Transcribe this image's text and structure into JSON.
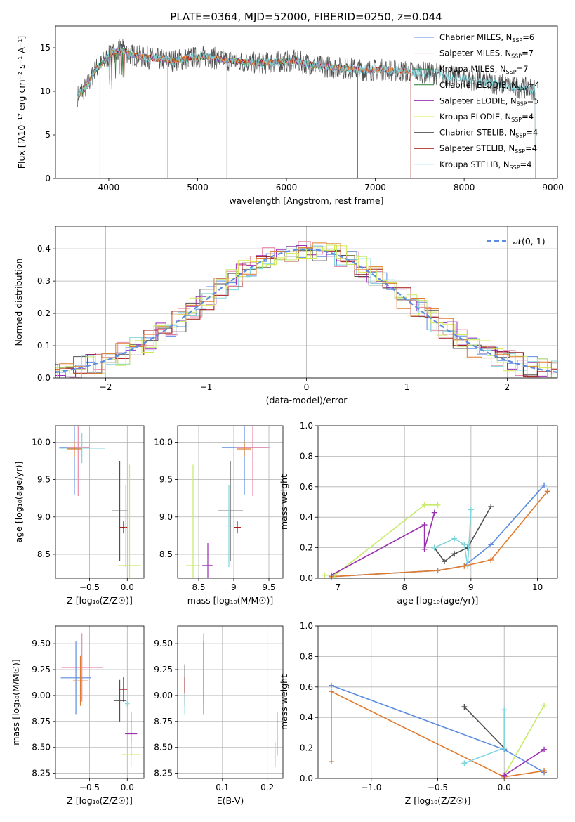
{
  "figure_title": "PLATE=0364, MJD=52000, FIBERID=0250, z=0.044",
  "colors": {
    "Chabrier MILES": "#5b8ce0",
    "Salpeter MILES": "#e98aa8",
    "Kroupa MILES": "#2e8b57",
    "Chabrier ELODIE": "#2e7d32",
    "Salpeter ELODIE": "#9a2fb0",
    "Kroupa ELODIE": "#d7e84a",
    "Chabrier STELIB": "#505050",
    "Salpeter STELIB": "#a01010",
    "Kroupa STELIB": "#7fd6dc",
    "orange": "#e07a2e",
    "lime": "#c7ea6a",
    "grid": "#b0b0b0"
  },
  "chart_data": [
    {
      "type": "line",
      "title": "PLATE=0364, MJD=52000, FIBERID=0250, z=0.044",
      "xlabel": "wavelength [Angstrom, rest frame]",
      "ylabel": "Flux [fλ10⁻¹⁷ erg cm⁻² s⁻¹ A⁻¹]",
      "xlim": [
        3400,
        9050
      ],
      "ylim": [
        0,
        17.5
      ],
      "xticks": [
        4000,
        5000,
        6000,
        7000,
        8000,
        9000
      ],
      "yticks": [
        0,
        5,
        10,
        15
      ],
      "grid": false,
      "legend_position": "top-right",
      "legend": [
        {
          "label": "Chabrier MILES, N",
          "sub": "SSP",
          "suffix": "=6"
        },
        {
          "label": "Salpeter MILES, N",
          "sub": "SSP",
          "suffix": "=7"
        },
        {
          "label": "Kroupa MILES, N",
          "sub": "SSP",
          "suffix": "=7"
        },
        {
          "label": "Chabrier ELODIE, N",
          "sub": "SSP",
          "suffix": "=4"
        },
        {
          "label": "Salpeter ELODIE, N",
          "sub": "SSP",
          "suffix": "=5"
        },
        {
          "label": "Kroupa ELODIE, N",
          "sub": "SSP",
          "suffix": "=4"
        },
        {
          "label": "Chabrier STELIB, N",
          "sub": "SSP",
          "suffix": "=4"
        },
        {
          "label": "Salpeter STELIB, N",
          "sub": "SSP",
          "suffix": "=4"
        },
        {
          "label": "Kroupa STELIB, N",
          "sub": "SSP",
          "suffix": "=4"
        }
      ],
      "envelope": {
        "x": [
          3650,
          3750,
          3850,
          3950,
          4050,
          4150,
          4250,
          4350,
          4500,
          4700,
          4900,
          5100,
          5300,
          5500,
          5700,
          5900,
          6100,
          6300,
          6500,
          6700,
          6900,
          7100,
          7300,
          7500,
          7700,
          7900,
          8100,
          8300,
          8500,
          8800
        ],
        "y": [
          9.5,
          10.5,
          12.5,
          13.5,
          14.5,
          14.8,
          14.2,
          14.0,
          13.8,
          13.5,
          13.8,
          14.0,
          13.6,
          13.4,
          13.2,
          13.4,
          13.5,
          13.0,
          12.8,
          12.6,
          12.4,
          12.5,
          12.3,
          12.2,
          12.0,
          11.6,
          11.3,
          11.0,
          10.6,
          10.2
        ]
      },
      "series_cutoffs": [
        {
          "name": "Chabrier MILES",
          "end": 7400
        },
        {
          "name": "Salpeter MILES",
          "end": 7400
        },
        {
          "name": "Kroupa ELODIE",
          "end": 6800
        },
        {
          "name": "Chabrier STELIB",
          "end": 8800
        },
        {
          "name": "Kroupa STELIB",
          "end": 8800
        }
      ]
    },
    {
      "type": "line",
      "xlabel": "(data-model)/error",
      "ylabel": "Normed distribution",
      "xlim": [
        -2.5,
        2.5
      ],
      "ylim": [
        0,
        0.47
      ],
      "xticks": [
        -2,
        -1,
        0,
        1,
        2
      ],
      "yticks": [
        0.0,
        0.1,
        0.2,
        0.3,
        0.4
      ],
      "grid": true,
      "legend_position": "top-right",
      "legend": [
        {
          "label": "𝒩(0, 1)"
        }
      ],
      "normal_curve": {
        "mean": 0,
        "sigma": 1
      }
    },
    {
      "type": "scatter",
      "xlabel": "Z [log₁₀(Z/Z☉)]",
      "ylabel": "age  [log₁₀(age/yr)]",
      "xlim": [
        -0.95,
        0.22
      ],
      "ylim": [
        8.18,
        10.22
      ],
      "xticks": [
        -0.5,
        0.0
      ],
      "yticks": [
        8.5,
        9.0,
        9.5,
        10.0
      ],
      "grid": true,
      "points": [
        {
          "series": "Chabrier MILES",
          "x": -0.7,
          "y": 9.93,
          "xerr": 0.2,
          "yerr": 0.63
        },
        {
          "series": "Salpeter MILES",
          "x": -0.65,
          "y": 9.93,
          "xerr": 0.15,
          "yerr": 0.65
        },
        {
          "series": "Kroupa STELIB",
          "x": -0.6,
          "y": 9.92,
          "xerr": 0.3,
          "yerr": 0.2
        },
        {
          "series": "orange",
          "x": -0.7,
          "y": 9.91,
          "xerr": 0.1,
          "yerr": 0.1
        },
        {
          "series": "Chabrier STELIB",
          "x": -0.1,
          "y": 9.08,
          "xerr": 0.1,
          "yerr": 0.67
        },
        {
          "series": "Salpeter STELIB",
          "x": -0.05,
          "y": 8.86,
          "xerr": 0.05,
          "yerr": 0.08
        },
        {
          "series": "Kroupa STELIB",
          "x": -0.02,
          "y": 8.88,
          "xerr": 0.03,
          "yerr": 0.55
        },
        {
          "series": "lime",
          "x": 0.03,
          "y": 8.35,
          "xerr": 0.15,
          "yerr": 1.35
        }
      ]
    },
    {
      "type": "scatter",
      "xlabel": "mass [log₁₀(M/M☉)]",
      "ylabel": "",
      "xlim": [
        8.2,
        9.7
      ],
      "ylim": [
        8.18,
        10.22
      ],
      "xticks": [
        8.5,
        9.0,
        9.5
      ],
      "yticks": [
        8.5,
        9.0,
        9.5,
        10.0
      ],
      "grid": true,
      "points": [
        {
          "series": "Chabrier MILES",
          "x": 9.15,
          "y": 9.93,
          "xerr": 0.32,
          "yerr": 0.63
        },
        {
          "series": "Salpeter MILES",
          "x": 9.27,
          "y": 9.93,
          "xerr": 0.25,
          "yerr": 0.65
        },
        {
          "series": "orange",
          "x": 9.15,
          "y": 9.91,
          "xerr": 0.1,
          "yerr": 0.1
        },
        {
          "series": "Chabrier STELIB",
          "x": 8.95,
          "y": 9.08,
          "xerr": 0.18,
          "yerr": 0.67
        },
        {
          "series": "Salpeter STELIB",
          "x": 9.05,
          "y": 8.86,
          "xerr": 0.05,
          "yerr": 0.08
        },
        {
          "series": "Kroupa STELIB",
          "x": 8.93,
          "y": 8.88,
          "xerr": 0.05,
          "yerr": 0.55
        },
        {
          "series": "Salpeter ELODIE",
          "x": 8.63,
          "y": 8.35,
          "xerr": 0.08,
          "yerr": 0.3
        },
        {
          "series": "lime",
          "x": 8.42,
          "y": 8.35,
          "xerr": 0.1,
          "yerr": 1.35
        }
      ]
    },
    {
      "type": "line",
      "xlabel": "age  [log₁₀(age/yr)]",
      "ylabel": "mass weight",
      "xlim": [
        6.7,
        10.3
      ],
      "ylim": [
        0.0,
        1.0
      ],
      "xticks": [
        7,
        8,
        9,
        10
      ],
      "yticks": [
        0.0,
        0.2,
        0.4,
        0.6,
        0.8,
        1.0
      ],
      "grid": true,
      "series": [
        {
          "name": "Chabrier MILES",
          "x": [
            6.9,
            8.5,
            8.9,
            9.3,
            10.1
          ],
          "y": [
            0.01,
            0.05,
            0.08,
            0.22,
            0.61
          ]
        },
        {
          "name": "orange",
          "x": [
            6.9,
            8.5,
            8.9,
            9.3,
            10.15
          ],
          "y": [
            0.01,
            0.05,
            0.08,
            0.12,
            0.57
          ]
        },
        {
          "name": "lime",
          "x": [
            6.8,
            6.95,
            8.3,
            8.5
          ],
          "y": [
            0.02,
            0.02,
            0.48,
            0.48
          ]
        },
        {
          "name": "Salpeter ELODIE",
          "x": [
            6.9,
            8.3,
            8.3,
            8.45
          ],
          "y": [
            0.02,
            0.35,
            0.19,
            0.43
          ]
        },
        {
          "name": "Chabrier STELIB",
          "x": [
            8.45,
            8.6,
            8.75,
            8.95,
            9.3
          ],
          "y": [
            0.2,
            0.11,
            0.16,
            0.2,
            0.47
          ]
        },
        {
          "name": "Kroupa STELIB",
          "x": [
            8.45,
            8.75,
            8.9,
            8.95,
            9.0
          ],
          "y": [
            0.2,
            0.26,
            0.22,
            0.08,
            0.45
          ]
        }
      ]
    },
    {
      "type": "scatter",
      "xlabel": "Z [log₁₀(Z/Z☉)]",
      "ylabel": "mass [log₁₀(M/M☉)]",
      "xlim": [
        -0.95,
        0.22
      ],
      "ylim": [
        8.2,
        9.67
      ],
      "xticks": [
        -0.5,
        0.0
      ],
      "yticks": [
        8.25,
        8.5,
        8.75,
        9.0,
        9.25,
        9.5
      ],
      "grid": true,
      "points": [
        {
          "series": "Salpeter MILES",
          "x": -0.6,
          "y": 9.27,
          "xerr": 0.27,
          "yerr": 0.33
        },
        {
          "series": "Chabrier MILES",
          "x": -0.68,
          "y": 9.17,
          "xerr": 0.2,
          "yerr": 0.35
        },
        {
          "series": "orange",
          "x": -0.62,
          "y": 9.14,
          "xerr": 0.1,
          "yerr": 0.24
        },
        {
          "series": "Chabrier STELIB",
          "x": -0.1,
          "y": 8.95,
          "xerr": 0.08,
          "yerr": 0.2
        },
        {
          "series": "Salpeter STELIB",
          "x": -0.05,
          "y": 9.06,
          "xerr": 0.05,
          "yerr": 0.12
        },
        {
          "series": "Kroupa STELIB",
          "x": 0.0,
          "y": 8.92,
          "xerr": 0.03,
          "yerr": 0.03
        },
        {
          "series": "Salpeter ELODIE",
          "x": 0.05,
          "y": 8.63,
          "xerr": 0.08,
          "yerr": 0.21
        },
        {
          "series": "lime",
          "x": 0.05,
          "y": 8.43,
          "xerr": 0.12,
          "yerr": 0.12
        }
      ]
    },
    {
      "type": "scatter",
      "xlabel": "E(B-V)",
      "ylabel": "",
      "xlim": [
        0.0,
        0.235
      ],
      "ylim": [
        8.2,
        9.67
      ],
      "xticks": [
        0.1,
        0.2
      ],
      "yticks": [
        8.25,
        8.5,
        8.75,
        9.0,
        9.25,
        9.5
      ],
      "grid": true,
      "points": [
        {
          "series": "Chabrier STELIB",
          "x": 0.016,
          "y": 9.1,
          "xerr": 0,
          "yerr": 0.2
        },
        {
          "series": "Salpeter STELIB",
          "x": 0.016,
          "y": 9.06,
          "xerr": 0,
          "yerr": 0.12
        },
        {
          "series": "Kroupa STELIB",
          "x": 0.016,
          "y": 8.92,
          "xerr": 0,
          "yerr": 0.1
        },
        {
          "series": "Salpeter MILES",
          "x": 0.058,
          "y": 9.27,
          "xerr": 0,
          "yerr": 0.33
        },
        {
          "series": "Chabrier MILES",
          "x": 0.058,
          "y": 9.17,
          "xerr": 0,
          "yerr": 0.35
        },
        {
          "series": "orange",
          "x": 0.058,
          "y": 9.14,
          "xerr": 0,
          "yerr": 0.24
        },
        {
          "series": "Salpeter ELODIE",
          "x": 0.222,
          "y": 8.63,
          "xerr": 0,
          "yerr": 0.21
        },
        {
          "series": "lime",
          "x": 0.218,
          "y": 8.43,
          "xerr": 0,
          "yerr": 0.12
        }
      ]
    },
    {
      "type": "line",
      "xlabel": "Z [log₁₀(Z/Z☉)]",
      "ylabel": "mass weight",
      "xlim": [
        -1.4,
        0.4
      ],
      "ylim": [
        0.0,
        1.0
      ],
      "xticks": [
        -1.0,
        -0.5,
        0.0
      ],
      "yticks": [
        0.0,
        0.2,
        0.4,
        0.6,
        0.8,
        1.0
      ],
      "grid": true,
      "series": [
        {
          "name": "Chabrier MILES",
          "x": [
            -1.3,
            0.0,
            0.3
          ],
          "y": [
            0.61,
            0.19,
            0.04
          ]
        },
        {
          "name": "orange",
          "x": [
            -1.3,
            -1.3,
            0.0,
            0.3
          ],
          "y": [
            0.11,
            0.57,
            0.01,
            0.05
          ]
        },
        {
          "name": "lime",
          "x": [
            0.0,
            0.3
          ],
          "y": [
            0.02,
            0.48
          ]
        },
        {
          "name": "Salpeter ELODIE",
          "x": [
            0.0,
            0.3
          ],
          "y": [
            0.02,
            0.19
          ]
        },
        {
          "name": "Chabrier STELIB",
          "x": [
            -0.3,
            0.0
          ],
          "y": [
            0.47,
            0.2
          ]
        },
        {
          "name": "Kroupa STELIB",
          "x": [
            -0.3,
            0.0,
            0.0
          ],
          "y": [
            0.1,
            0.2,
            0.45
          ]
        }
      ]
    }
  ]
}
